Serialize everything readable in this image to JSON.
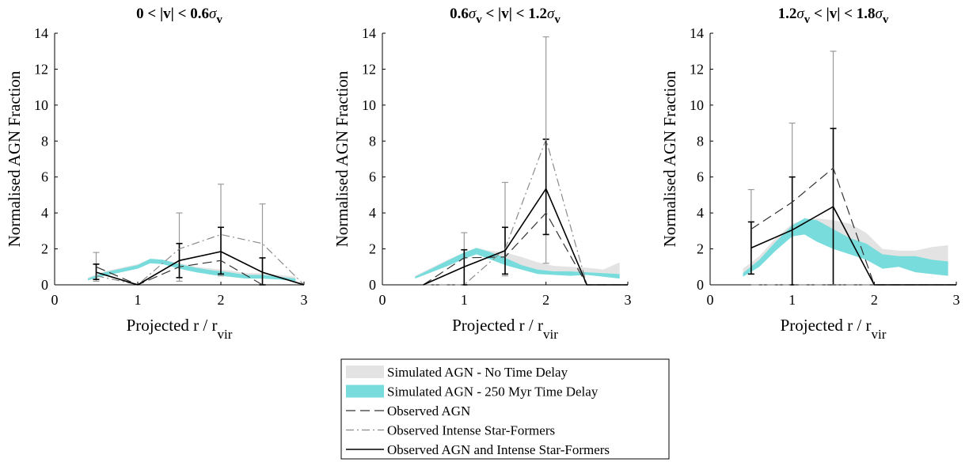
{
  "chart_data": [
    {
      "type": "line",
      "title_parts": [
        "0 < |v| < 0.6",
        "σ",
        "v"
      ],
      "xlabel_parts": [
        "Projected r / r",
        "vir"
      ],
      "ylabel": "Normalised AGN Fraction",
      "xlim": [
        0,
        3
      ],
      "ylim": [
        0,
        14
      ],
      "xticks": [
        0,
        1,
        2,
        3
      ],
      "yticks": [
        0,
        2,
        4,
        6,
        8,
        10,
        12,
        14
      ],
      "bands": [
        {
          "name": "Simulated AGN - No Time Delay",
          "x": [
            0.4,
            0.6,
            0.8,
            1.0,
            1.15,
            1.3,
            1.5,
            1.7,
            1.9,
            2.1,
            2.3,
            2.5,
            2.7,
            2.9
          ],
          "lower": [
            0.25,
            0.55,
            0.75,
            0.95,
            1.2,
            1.15,
            0.95,
            0.75,
            0.65,
            0.55,
            0.45,
            0.45,
            0.35,
            0.25
          ],
          "upper": [
            0.4,
            0.75,
            0.95,
            1.15,
            1.45,
            1.4,
            1.2,
            1.0,
            0.9,
            0.8,
            0.65,
            0.65,
            0.55,
            0.45
          ]
        },
        {
          "name": "Simulated AGN - 250 Myr Time Delay",
          "x": [
            0.4,
            0.6,
            0.8,
            1.0,
            1.15,
            1.3,
            1.5,
            1.7,
            1.9,
            2.1,
            2.3,
            2.5,
            2.7,
            2.9
          ],
          "lower": [
            0.25,
            0.5,
            0.7,
            0.9,
            1.2,
            1.15,
            0.9,
            0.7,
            0.55,
            0.45,
            0.35,
            0.35,
            0.3,
            0.2
          ],
          "upper": [
            0.35,
            0.7,
            0.9,
            1.1,
            1.45,
            1.4,
            1.15,
            0.95,
            0.8,
            0.7,
            0.55,
            0.55,
            0.45,
            0.35
          ]
        }
      ],
      "series": [
        {
          "name": "Observed AGN",
          "x": [
            0.5,
            1.0,
            1.5,
            2.0,
            2.5,
            3.0
          ],
          "y": [
            1.0,
            0.0,
            1.0,
            1.35,
            0.0,
            0.0
          ],
          "err": [
            [
              0.2,
              1.8
            ],
            [
              0,
              0
            ],
            [
              0.2,
              4.0
            ],
            [
              0.5,
              5.6
            ],
            [
              0,
              4.5
            ],
            [
              0,
              0
            ]
          ]
        },
        {
          "name": "Observed Intense Star-Formers",
          "x": [
            0.5,
            1.0,
            1.5,
            2.0,
            2.5,
            3.0
          ],
          "y": [
            0.5,
            0.0,
            2.0,
            2.8,
            2.3,
            0.0
          ]
        },
        {
          "name": "Observed AGN and Intense Star-Formers",
          "x": [
            0.5,
            1.0,
            1.5,
            2.0,
            2.5,
            3.0
          ],
          "y": [
            0.7,
            0.0,
            1.35,
            1.85,
            0.7,
            0.0
          ],
          "err": [
            [
              0.3,
              1.15
            ],
            [
              0,
              0
            ],
            [
              0.4,
              2.3
            ],
            [
              0.6,
              3.2
            ],
            [
              0,
              1.5
            ],
            [
              0,
              0
            ]
          ]
        }
      ]
    },
    {
      "type": "line",
      "title_parts": [
        "0.6",
        "σ",
        "v",
        " < |v| < 1.2",
        "σ",
        "v"
      ],
      "xlabel_parts": [
        "Projected r / r",
        "vir"
      ],
      "ylabel": "Normalised AGN Fraction",
      "xlim": [
        0,
        3
      ],
      "ylim": [
        0,
        14
      ],
      "xticks": [
        0,
        1,
        2,
        3
      ],
      "yticks": [
        0,
        2,
        4,
        6,
        8,
        10,
        12,
        14
      ],
      "bands": [
        {
          "name": "Simulated AGN - No Time Delay",
          "x": [
            0.4,
            0.6,
            0.8,
            1.0,
            1.15,
            1.3,
            1.5,
            1.7,
            1.9,
            2.1,
            2.3,
            2.5,
            2.7,
            2.9
          ],
          "lower": [
            0.4,
            0.75,
            1.1,
            1.55,
            1.75,
            1.55,
            1.35,
            1.1,
            0.85,
            0.75,
            0.75,
            0.7,
            0.65,
            0.55
          ],
          "upper": [
            0.5,
            0.95,
            1.4,
            1.8,
            2.05,
            1.9,
            1.8,
            1.55,
            1.25,
            1.05,
            1.0,
            0.95,
            0.85,
            1.25
          ]
        },
        {
          "name": "Simulated AGN - 250 Myr Time Delay",
          "x": [
            0.4,
            0.6,
            0.8,
            1.0,
            1.15,
            1.3,
            1.5,
            1.7,
            1.9,
            2.1,
            2.3,
            2.5,
            2.7,
            2.9
          ],
          "lower": [
            0.35,
            0.7,
            1.05,
            1.45,
            1.7,
            1.45,
            1.1,
            0.85,
            0.6,
            0.55,
            0.5,
            0.55,
            0.45,
            0.35
          ],
          "upper": [
            0.45,
            0.9,
            1.35,
            1.8,
            2.05,
            1.85,
            1.5,
            1.1,
            0.85,
            0.75,
            0.75,
            0.7,
            0.65,
            0.6
          ]
        }
      ],
      "series": [
        {
          "name": "Observed AGN",
          "x": [
            0.5,
            1.0,
            1.5,
            2.0,
            2.5,
            3.0
          ],
          "y": [
            0.0,
            1.5,
            1.55,
            4.0,
            0.0,
            0.0
          ],
          "err": [
            [
              0,
              0
            ],
            [
              0,
              2.9
            ],
            [
              0.5,
              5.7
            ],
            [
              1.2,
              13.8
            ],
            [
              0,
              0
            ],
            [
              0,
              0
            ]
          ]
        },
        {
          "name": "Observed Intense Star-Formers",
          "x": [
            0.5,
            1.0,
            1.5,
            2.0,
            2.5,
            3.0
          ],
          "y": [
            0.0,
            0.0,
            2.0,
            8.1,
            0.0,
            0.0
          ]
        },
        {
          "name": "Observed AGN and Intense Star-Formers",
          "x": [
            0.5,
            1.0,
            1.5,
            2.0,
            2.5,
            3.0
          ],
          "y": [
            0.0,
            1.0,
            1.9,
            5.35,
            0.0,
            0.0
          ],
          "err": [
            [
              0,
              0
            ],
            [
              0,
              1.95
            ],
            [
              0.6,
              3.2
            ],
            [
              2.8,
              8.1
            ],
            [
              0,
              0
            ],
            [
              0,
              0
            ]
          ]
        }
      ]
    },
    {
      "type": "line",
      "title_parts": [
        "1.2",
        "σ",
        "v",
        " < |v| < 1.8",
        "σ",
        "v"
      ],
      "xlabel_parts": [
        "Projected r / r",
        "vir"
      ],
      "ylabel": "Normalised AGN Fraction",
      "xlim": [
        0,
        3
      ],
      "ylim": [
        0,
        14
      ],
      "xticks": [
        0,
        1,
        2,
        3
      ],
      "yticks": [
        0,
        2,
        4,
        6,
        8,
        10,
        12,
        14
      ],
      "bands": [
        {
          "name": "Simulated AGN - No Time Delay",
          "x": [
            0.4,
            0.6,
            0.8,
            1.0,
            1.15,
            1.3,
            1.5,
            1.7,
            1.9,
            2.1,
            2.3,
            2.5,
            2.7,
            2.9
          ],
          "lower": [
            0.6,
            1.2,
            2.0,
            2.7,
            2.8,
            2.7,
            2.6,
            2.1,
            1.7,
            1.3,
            1.2,
            1.15,
            1.05,
            1.0
          ],
          "upper": [
            0.9,
            1.6,
            2.6,
            3.4,
            3.6,
            3.7,
            3.6,
            3.4,
            2.9,
            2.0,
            1.9,
            1.9,
            2.1,
            2.2
          ]
        },
        {
          "name": "Simulated AGN - 250 Myr Time Delay",
          "x": [
            0.4,
            0.6,
            0.8,
            1.0,
            1.15,
            1.3,
            1.5,
            1.7,
            1.9,
            2.1,
            2.3,
            2.5,
            2.7,
            2.9
          ],
          "lower": [
            0.45,
            1.0,
            1.9,
            2.7,
            2.8,
            2.4,
            2.0,
            1.7,
            1.4,
            0.9,
            1.0,
            0.7,
            0.6,
            0.5
          ],
          "upper": [
            0.65,
            1.4,
            2.4,
            3.3,
            3.7,
            3.6,
            3.1,
            2.6,
            2.3,
            1.7,
            1.6,
            1.6,
            1.4,
            1.3
          ]
        }
      ],
      "series": [
        {
          "name": "Observed AGN",
          "x": [
            0.5,
            1.0,
            1.5,
            2.0,
            2.5,
            3.0
          ],
          "y": [
            3.1,
            4.6,
            6.5,
            0.0,
            0.0,
            0.0
          ],
          "err": [
            [
              0.6,
              5.3
            ],
            [
              0,
              9.0
            ],
            [
              0,
              13.0
            ],
            [
              0,
              0
            ],
            [
              0,
              0
            ],
            [
              0,
              0
            ]
          ]
        },
        {
          "name": "Observed Intense Star-Formers",
          "x": [
            0.5,
            1.0,
            1.5,
            2.0,
            2.5,
            3.0
          ],
          "y": [
            0.0,
            0.0,
            0.0,
            0.0,
            0.0,
            0.0
          ]
        },
        {
          "name": "Observed AGN and Intense Star-Formers",
          "x": [
            0.5,
            1.0,
            1.5,
            2.0,
            2.5,
            3.0
          ],
          "y": [
            2.05,
            3.05,
            4.35,
            0.0,
            0.0,
            0.0
          ],
          "err": [
            [
              0.6,
              3.5
            ],
            [
              0,
              6.0
            ],
            [
              0,
              8.7
            ],
            [
              0,
              0
            ],
            [
              0,
              0
            ],
            [
              0,
              0
            ]
          ]
        }
      ]
    }
  ],
  "legend": {
    "entries": [
      {
        "label": "Simulated AGN - No Time Delay",
        "kind": "band",
        "color": "#e3e3e3"
      },
      {
        "label": "Simulated AGN - 250 Myr Time Delay",
        "kind": "band",
        "color": "#79dcdc"
      },
      {
        "label": "Observed AGN",
        "kind": "dashed",
        "color": "#333333"
      },
      {
        "label": "Observed Intense Star-Formers",
        "kind": "dashdot",
        "color": "#8a8a8a"
      },
      {
        "label": "Observed AGN and Intense Star-Formers",
        "kind": "solid",
        "color": "#000000"
      }
    ]
  },
  "colors": {
    "band_no_delay": "#e3e3e3",
    "band_delay": "#79dcdc",
    "observed_agn": "#333333",
    "star_formers": "#8a8a8a",
    "combined": "#000000",
    "errorbar_light": "#9a9a9a"
  }
}
